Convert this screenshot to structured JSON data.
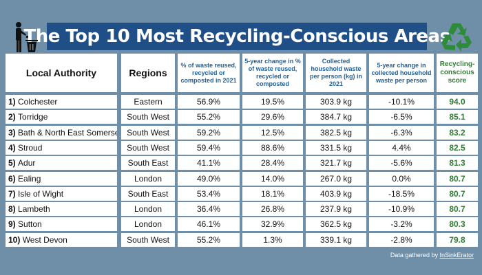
{
  "title": "The Top 10 Most Recycling-Conscious Areas",
  "icons": {
    "left": "recycle-bin-figure-icon",
    "right": "recycling-symbol-icon"
  },
  "colors": {
    "background": "#6f8fa8",
    "title_bg": "#1f4f86",
    "header_text": "#1f5f9a",
    "score_text": "#2e7d32"
  },
  "headers": [
    "Local Authority",
    "Regions",
    "% of waste reused, recycled or composted in 2021",
    "5-year change in % of waste reused, recycled or composted",
    "Collected household waste per person (kg) in 2021",
    "5-year change in collected household waste per person",
    "Recycling-conscious score"
  ],
  "rows": [
    {
      "rank": "1)",
      "authority": "Colchester",
      "region": "Eastern",
      "pct": "56.9%",
      "pct_change": "19.5%",
      "waste": "303.9 kg",
      "waste_change": "-10.1%",
      "score": "94.0"
    },
    {
      "rank": "2)",
      "authority": "Torridge",
      "region": "South West",
      "pct": "55.2%",
      "pct_change": "29.6%",
      "waste": "384.7 kg",
      "waste_change": "-6.5%",
      "score": "85.1"
    },
    {
      "rank": "3)",
      "authority": "Bath & North East Somerset",
      "region": "South West",
      "pct": "59.2%",
      "pct_change": "12.5%",
      "waste": "382.5 kg",
      "waste_change": "-6.3%",
      "score": "83.2"
    },
    {
      "rank": "4)",
      "authority": "Stroud",
      "region": "South West",
      "pct": "59.4%",
      "pct_change": "88.6%",
      "waste": "331.5 kg",
      "waste_change": "4.4%",
      "score": "82.5"
    },
    {
      "rank": "5)",
      "authority": "Adur",
      "region": "South East",
      "pct": "41.1%",
      "pct_change": "28.4%",
      "waste": "321.7 kg",
      "waste_change": "-5.6%",
      "score": "81.3"
    },
    {
      "rank": "6)",
      "authority": "Ealing",
      "region": "London",
      "pct": "49.0%",
      "pct_change": "14.0%",
      "waste": "267.0 kg",
      "waste_change": "0.0%",
      "score": "80.7"
    },
    {
      "rank": "7)",
      "authority": "Isle of Wight",
      "region": "South East",
      "pct": "53.4%",
      "pct_change": "18.1%",
      "waste": "403.9 kg",
      "waste_change": "-18.5%",
      "score": "80.7"
    },
    {
      "rank": "8)",
      "authority": "Lambeth",
      "region": "London",
      "pct": "36.4%",
      "pct_change": "26.8%",
      "waste": "237.9 kg",
      "waste_change": "-10.9%",
      "score": "80.7"
    },
    {
      "rank": "9)",
      "authority": "Sutton",
      "region": "London",
      "pct": "46.1%",
      "pct_change": "32.9%",
      "waste": "362.5 kg",
      "waste_change": "-3.2%",
      "score": "80.3"
    },
    {
      "rank": "10)",
      "authority": "West Devon",
      "region": "South West",
      "pct": "55.2%",
      "pct_change": "1.3%",
      "waste": "339.1 kg",
      "waste_change": "-2.8%",
      "score": "79.8"
    }
  ],
  "credit": {
    "prefix": "Data gathered by ",
    "source": "InSinkErator"
  }
}
